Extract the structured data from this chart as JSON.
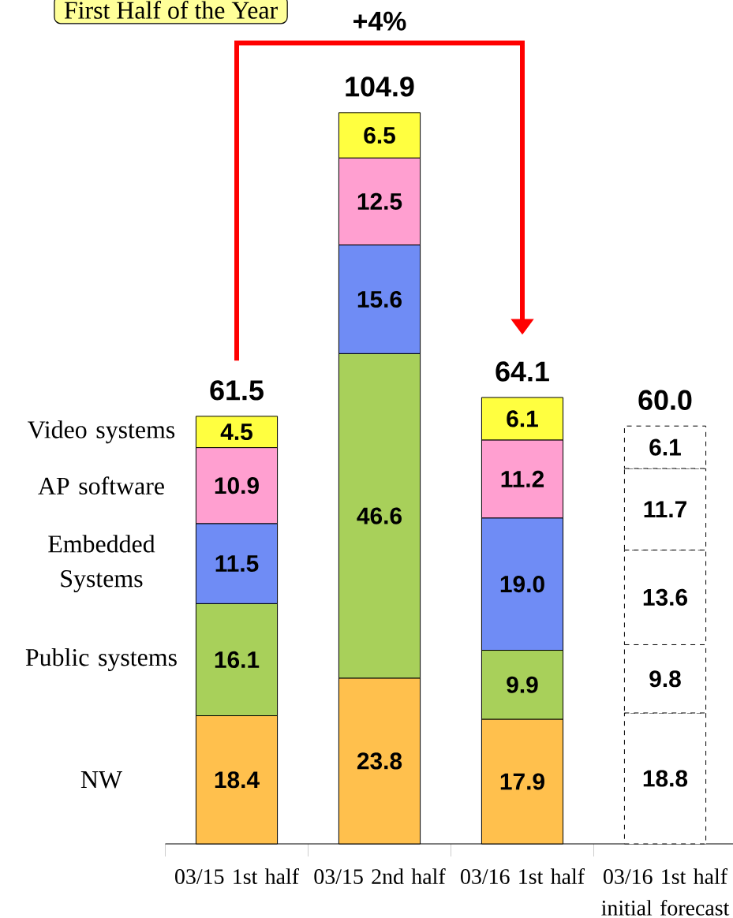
{
  "chart_data": {
    "type": "bar",
    "title": "First Half of the Year",
    "stacked": true,
    "categories": [
      "03/15 1st half",
      "03/15 2nd half",
      "03/16 1st half",
      "03/16 1st half initial forecast"
    ],
    "series": [
      {
        "name": "NW",
        "colors": [
          "#ffc04d",
          "#ffc04d",
          "#ffc04d",
          "#ffffff"
        ],
        "values": [
          18.4,
          23.8,
          17.9,
          18.8
        ],
        "value_labels": [
          "18.4",
          "23.8",
          "17.9",
          "18.8"
        ]
      },
      {
        "name": "Public systems",
        "colors": [
          "#a8d05a",
          "#a8d05a",
          "#a8d05a",
          "#ffffff"
        ],
        "values": [
          16.1,
          46.6,
          9.9,
          9.8
        ],
        "value_labels": [
          "16.1",
          "46.6",
          "9.9",
          "9.8"
        ]
      },
      {
        "name": "Embedded Systems",
        "colors": [
          "#6f8cf5",
          "#6f8cf5",
          "#6f8cf5",
          "#ffffff"
        ],
        "values": [
          11.5,
          15.6,
          19.0,
          13.6
        ],
        "value_labels": [
          "11.5",
          "15.6",
          "19.0",
          "13.6"
        ]
      },
      {
        "name": "AP software",
        "colors": [
          "#ff9fd0",
          "#ff9fd0",
          "#ff9fd0",
          "#ffffff"
        ],
        "values": [
          10.9,
          12.5,
          11.2,
          11.7
        ],
        "value_labels": [
          "10.9",
          "12.5",
          "11.2",
          "11.7"
        ]
      },
      {
        "name": "Video systems",
        "colors": [
          "#ffff40",
          "#ffff40",
          "#ffff40",
          "#ffffff"
        ],
        "values": [
          4.5,
          6.5,
          6.1,
          6.1
        ],
        "value_labels": [
          "4.5",
          "6.5",
          "6.1",
          "6.1"
        ]
      }
    ],
    "totals": [
      "61.5",
      "104.9",
      "64.1",
      "60.0"
    ],
    "annotations": [
      "+4%"
    ]
  }
}
